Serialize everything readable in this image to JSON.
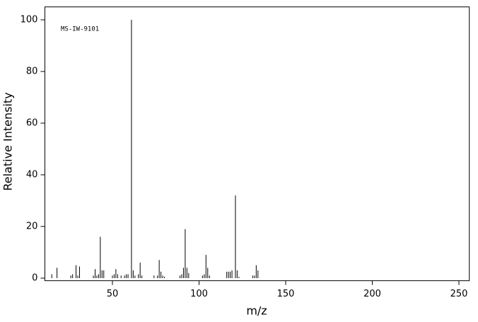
{
  "chart_data": {
    "type": "stem",
    "annotation": "MS-IW-9101",
    "xlabel": "m/z",
    "ylabel": "Relative Intensity",
    "color": "#000000",
    "x": [
      15,
      18,
      26,
      27,
      29,
      30,
      31,
      39,
      40,
      41,
      42,
      43,
      44,
      45,
      50,
      51,
      52,
      53,
      55,
      57,
      58,
      59,
      61,
      62,
      63,
      65,
      66,
      67,
      74,
      76,
      77,
      78,
      79,
      80,
      89,
      90,
      91,
      92,
      93,
      94,
      102,
      103,
      104,
      105,
      106,
      116,
      117,
      118,
      119,
      121,
      122,
      123,
      131,
      132,
      133,
      134
    ],
    "values": [
      1.5,
      4,
      1,
      1.5,
      5,
      1,
      4.5,
      1,
      3.5,
      1,
      1.5,
      16,
      3,
      3,
      1,
      1.5,
      3.5,
      1.5,
      1,
      1,
      1.5,
      1.5,
      100,
      3,
      1,
      1.5,
      6,
      1,
      1,
      1,
      7,
      2.5,
      1,
      0.5,
      1,
      1.5,
      4,
      19,
      4,
      2,
      1,
      1.5,
      9,
      4,
      1,
      2.5,
      2.5,
      2.5,
      3,
      32,
      3,
      0.5,
      1,
      1,
      5,
      3
    ],
    "xlim": [
      11,
      256
    ],
    "ylim": [
      -1,
      105
    ],
    "xticks": [
      50,
      100,
      150,
      200,
      250
    ],
    "yticks": [
      0,
      20,
      40,
      60,
      80,
      100
    ]
  }
}
